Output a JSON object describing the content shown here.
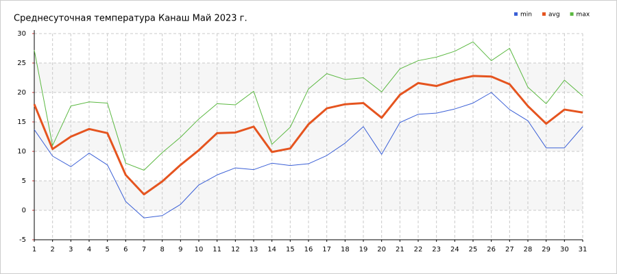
{
  "chart_data": {
    "type": "line",
    "title": "Среднесуточная температура Канаш  Май 2023 г.",
    "x": [
      1,
      2,
      3,
      4,
      5,
      6,
      7,
      8,
      9,
      10,
      11,
      12,
      13,
      14,
      15,
      16,
      17,
      18,
      19,
      20,
      21,
      22,
      23,
      24,
      25,
      26,
      27,
      28,
      29,
      30,
      31
    ],
    "xlim": [
      1,
      31
    ],
    "xticks": [
      1,
      2,
      3,
      4,
      5,
      6,
      7,
      8,
      9,
      10,
      11,
      12,
      13,
      14,
      15,
      16,
      17,
      18,
      19,
      20,
      21,
      22,
      23,
      24,
      25,
      26,
      27,
      28,
      29,
      30,
      31
    ],
    "ylim": [
      -5,
      30
    ],
    "yticks": [
      -5,
      0,
      5,
      10,
      15,
      20,
      25,
      30
    ],
    "grid": true,
    "legend": "top-right",
    "series": [
      {
        "name": "min",
        "color": "#3a5fd6",
        "values": [
          13.7,
          9.2,
          7.4,
          9.7,
          7.7,
          1.5,
          -1.3,
          -0.9,
          1.0,
          4.3,
          6.0,
          7.2,
          6.9,
          8.0,
          7.6,
          7.9,
          9.3,
          11.4,
          14.2,
          9.5,
          14.9,
          16.3,
          16.5,
          17.2,
          18.2,
          20.0,
          17.1,
          15.2,
          10.6,
          10.6,
          14.2
        ]
      },
      {
        "name": "avg",
        "color": "#e5541f",
        "values": [
          18.0,
          10.4,
          12.5,
          13.8,
          13.1,
          6.0,
          2.7,
          4.9,
          7.7,
          10.2,
          13.1,
          13.2,
          14.2,
          9.9,
          10.5,
          14.6,
          17.3,
          18.0,
          18.2,
          15.7,
          19.6,
          21.6,
          21.1,
          22.1,
          22.8,
          22.7,
          21.4,
          17.7,
          14.7,
          17.1,
          16.6
        ]
      },
      {
        "name": "max",
        "color": "#5ab840",
        "values": [
          27.2,
          11.0,
          17.7,
          18.4,
          18.2,
          8.0,
          6.8,
          9.8,
          12.4,
          15.5,
          18.1,
          17.9,
          20.2,
          11.2,
          14.1,
          20.6,
          23.2,
          22.2,
          22.5,
          20.1,
          24.0,
          25.4,
          26.0,
          27.0,
          28.6,
          25.4,
          27.5,
          20.9,
          18.1,
          22.1,
          19.4
        ]
      }
    ]
  }
}
